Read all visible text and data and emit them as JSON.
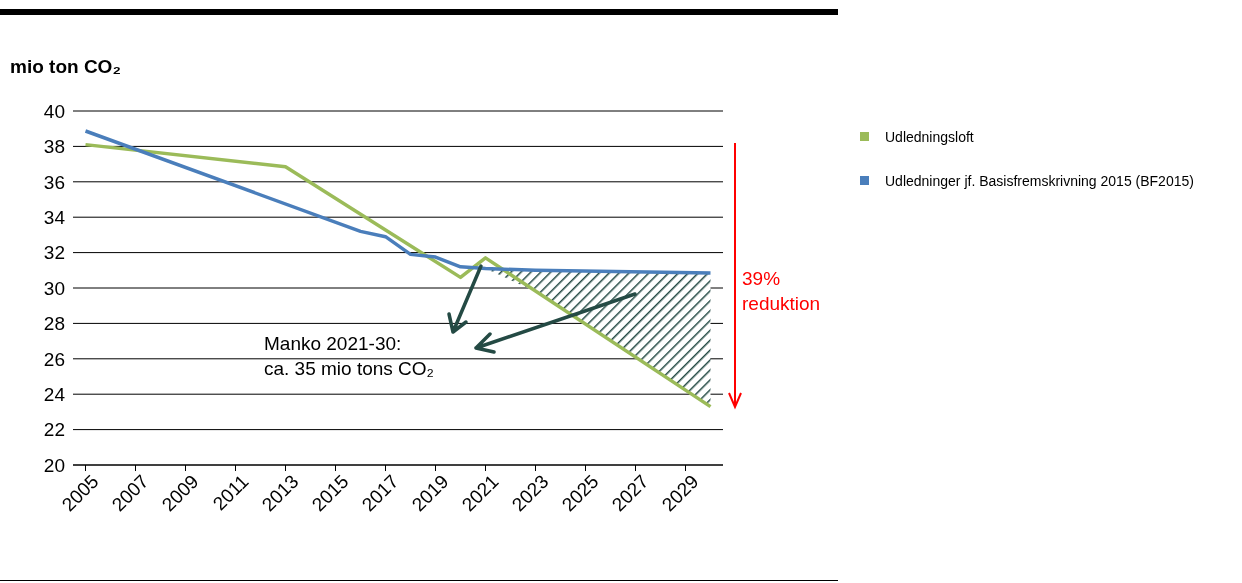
{
  "chart_data": {
    "type": "line",
    "ylabel": "mio ton CO₂",
    "xlim": [
      2004.5,
      2030.5
    ],
    "xticks": [
      2005,
      2007,
      2009,
      2011,
      2013,
      2015,
      2017,
      2019,
      2021,
      2023,
      2025,
      2027,
      2029
    ],
    "ylim": [
      20,
      40
    ],
    "yticks": [
      20,
      22,
      24,
      26,
      28,
      30,
      32,
      34,
      36,
      38,
      40
    ],
    "grid": "y",
    "legend": "right",
    "marker": "none",
    "line_style": "solid",
    "series": [
      {
        "name": "Udledningsloft",
        "color": "#9bbb59",
        "x": [
          2005,
          2013,
          2020,
          2021,
          2030
        ],
        "values": [
          38.1,
          36.85,
          30.6,
          31.7,
          23.3
        ]
      },
      {
        "name": "Udledninger jf. Basisfremskrivning 2015 (BF2015)",
        "color": "#4a7ebb",
        "x": [
          2005,
          2016,
          2017,
          2018,
          2019,
          2020,
          2021,
          2023,
          2030
        ],
        "values": [
          38.87,
          33.2,
          32.9,
          31.9,
          31.75,
          31.2,
          31.1,
          31.0,
          30.85
        ],
        "lower": [
          null,
          null,
          null,
          null,
          null,
          null,
          31.1,
          29.8,
          23.3
        ],
        "upper": [
          null,
          null,
          null,
          null,
          null,
          null,
          31.1,
          31.0,
          30.85
        ]
      }
    ],
    "annotations": [
      "39% reduktion",
      "Manko 2021-30:\nca. 35 mio tons CO₂"
    ]
  }
}
